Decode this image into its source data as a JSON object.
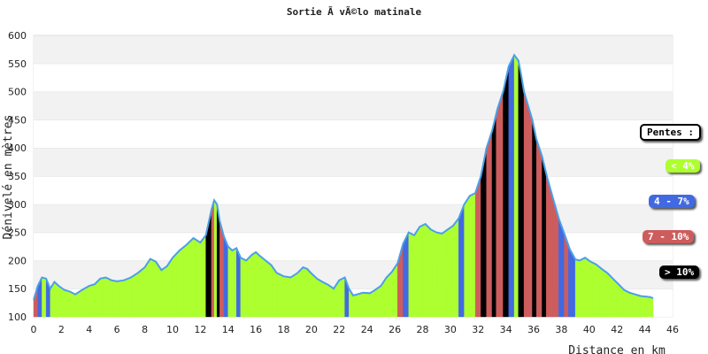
{
  "chart_data": {
    "type": "area",
    "title": "Sortie Ã  vÃ©lo matinale",
    "xlabel": "Distance en km",
    "ylabel": "Dénivelé en mètres",
    "xlim": [
      0,
      46
    ],
    "ylim": [
      100,
      600
    ],
    "xticks": [
      0,
      2,
      4,
      6,
      8,
      10,
      12,
      14,
      16,
      18,
      20,
      22,
      24,
      26,
      28,
      30,
      32,
      34,
      36,
      38,
      40,
      42,
      44,
      46
    ],
    "yticks": [
      100,
      150,
      200,
      250,
      300,
      350,
      400,
      450,
      500,
      550,
      600
    ],
    "grid": "horizontal bands",
    "legend_position": "right",
    "legend": {
      "title": "Pentes :",
      "items": [
        {
          "label": "< 4%",
          "color": "#adff2f"
        },
        {
          "label": "4 - 7%",
          "color": "#4169e1"
        },
        {
          "label": "7 - 10%",
          "color": "#cd5c5c"
        },
        {
          "label": "> 10%",
          "color": "#000000"
        }
      ]
    },
    "line_color": "#4a9fea",
    "x": [
      0,
      0.3,
      0.6,
      0.9,
      1.2,
      1.5,
      1.8,
      2.2,
      2.6,
      3.0,
      3.5,
      4.0,
      4.4,
      4.8,
      5.2,
      5.6,
      6.0,
      6.5,
      7.0,
      7.5,
      8.0,
      8.4,
      8.8,
      9.2,
      9.6,
      10.0,
      10.5,
      11.0,
      11.5,
      12.0,
      12.4,
      12.8,
      13.0,
      13.2,
      13.4,
      13.7,
      14.0,
      14.3,
      14.6,
      14.9,
      15.3,
      15.7,
      16.0,
      16.3,
      16.7,
      17.1,
      17.5,
      18.0,
      18.5,
      19.0,
      19.4,
      19.7,
      20.0,
      20.4,
      20.8,
      21.2,
      21.6,
      22.0,
      22.4,
      22.7,
      23.0,
      23.3,
      23.7,
      24.2,
      24.6,
      25.0,
      25.4,
      25.8,
      26.2,
      26.6,
      27.0,
      27.4,
      27.8,
      28.2,
      28.6,
      29.0,
      29.4,
      29.8,
      30.2,
      30.6,
      31.0,
      31.4,
      31.8,
      32.2,
      32.6,
      33.0,
      33.4,
      33.8,
      34.2,
      34.6,
      34.9,
      35.1,
      35.3,
      35.6,
      35.9,
      36.2,
      36.6,
      37.0,
      37.4,
      37.8,
      38.2,
      38.6,
      39.0,
      39.3,
      39.7,
      40.1,
      40.5,
      40.9,
      41.3,
      41.7,
      42.1,
      42.5,
      42.9,
      43.3,
      43.7,
      44.1,
      44.4,
      44.6
    ],
    "y": [
      130,
      155,
      170,
      168,
      150,
      162,
      155,
      148,
      145,
      140,
      148,
      155,
      158,
      168,
      170,
      165,
      163,
      165,
      170,
      178,
      188,
      203,
      198,
      183,
      190,
      205,
      218,
      228,
      240,
      232,
      245,
      290,
      307,
      300,
      270,
      243,
      225,
      218,
      222,
      205,
      200,
      210,
      215,
      208,
      200,
      192,
      178,
      172,
      170,
      178,
      188,
      185,
      177,
      168,
      162,
      157,
      150,
      165,
      170,
      150,
      138,
      140,
      143,
      142,
      148,
      155,
      170,
      180,
      195,
      230,
      250,
      245,
      260,
      265,
      255,
      250,
      248,
      255,
      262,
      275,
      300,
      315,
      320,
      350,
      400,
      430,
      470,
      500,
      545,
      565,
      555,
      530,
      500,
      475,
      450,
      415,
      385,
      345,
      310,
      275,
      248,
      220,
      202,
      200,
      205,
      198,
      193,
      185,
      178,
      168,
      158,
      148,
      143,
      140,
      137,
      136,
      135,
      133
    ]
  }
}
